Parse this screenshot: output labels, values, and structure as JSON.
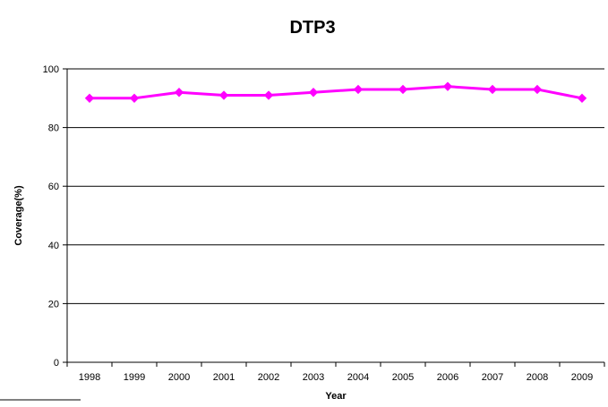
{
  "chart_data": {
    "type": "line",
    "title": "DTP3",
    "xlabel": "Year",
    "ylabel": "Coverage(%)",
    "categories": [
      "1998",
      "1999",
      "2000",
      "2001",
      "2002",
      "2003",
      "2004",
      "2005",
      "2006",
      "2007",
      "2008",
      "2009"
    ],
    "yticks": [
      "0",
      "20",
      "40",
      "60",
      "80",
      "100"
    ],
    "ylim": [
      0,
      100
    ],
    "grid": true,
    "legend": "none",
    "series": [
      {
        "values": [
          90,
          90,
          92,
          91,
          91,
          92,
          93,
          93,
          94,
          93,
          93,
          90
        ],
        "color": "#FF00FF",
        "marker": "diamond"
      }
    ]
  }
}
